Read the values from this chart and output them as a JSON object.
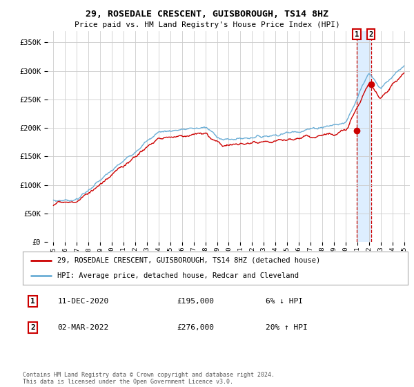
{
  "title": "29, ROSEDALE CRESCENT, GUISBOROUGH, TS14 8HZ",
  "subtitle": "Price paid vs. HM Land Registry's House Price Index (HPI)",
  "legend_line1": "29, ROSEDALE CRESCENT, GUISBOROUGH, TS14 8HZ (detached house)",
  "legend_line2": "HPI: Average price, detached house, Redcar and Cleveland",
  "annotation1_num": "1",
  "annotation1_date": "11-DEC-2020",
  "annotation1_price": "£195,000",
  "annotation1_hpi": "6% ↓ HPI",
  "annotation2_num": "2",
  "annotation2_date": "02-MAR-2022",
  "annotation2_price": "£276,000",
  "annotation2_hpi": "20% ↑ HPI",
  "footer": "Contains HM Land Registry data © Crown copyright and database right 2024.\nThis data is licensed under the Open Government Licence v3.0.",
  "hpi_color": "#6baed6",
  "price_color": "#cc0000",
  "shade_color": "#ddeeff",
  "marker1_x": 2020.95,
  "marker2_x": 2022.17,
  "marker1_y": 195000,
  "marker2_y": 276000,
  "ylim_min": 0,
  "ylim_max": 370000,
  "xlim_min": 1994.5,
  "xlim_max": 2025.5,
  "yticks": [
    0,
    50000,
    100000,
    150000,
    200000,
    250000,
    300000,
    350000
  ],
  "ytick_labels": [
    "£0",
    "£50K",
    "£100K",
    "£150K",
    "£200K",
    "£250K",
    "£300K",
    "£350K"
  ],
  "xtick_years": [
    1995,
    1996,
    1997,
    1998,
    1999,
    2000,
    2001,
    2002,
    2003,
    2004,
    2005,
    2006,
    2007,
    2008,
    2009,
    2010,
    2011,
    2012,
    2013,
    2014,
    2015,
    2016,
    2017,
    2018,
    2019,
    2020,
    2021,
    2022,
    2023,
    2024,
    2025
  ]
}
